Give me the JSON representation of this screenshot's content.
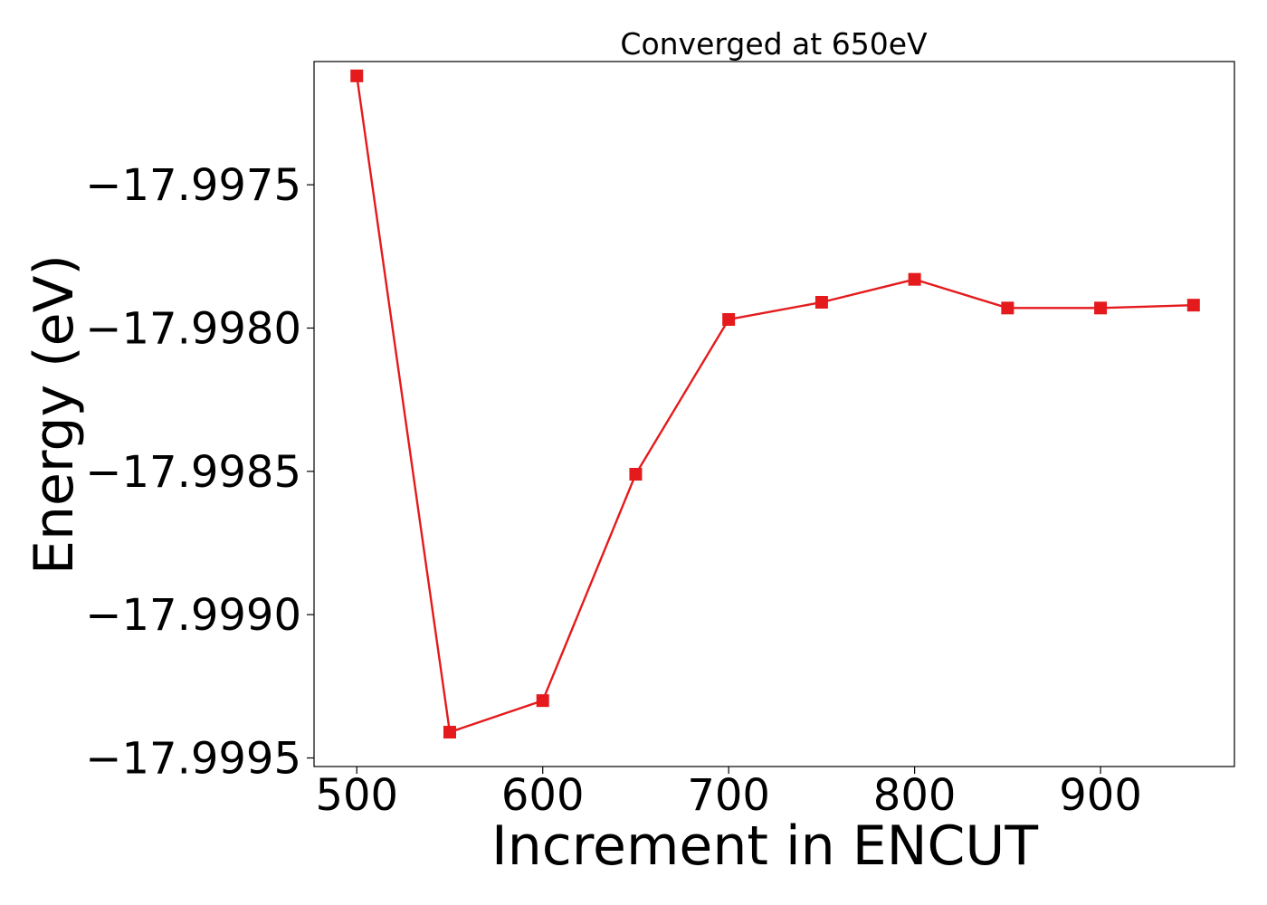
{
  "chart_data": {
    "type": "line",
    "title": "Converged at 650eV",
    "xlabel": "Increment in ENCUT",
    "ylabel": "Energy (eV)",
    "x": [
      500,
      550,
      600,
      650,
      700,
      750,
      800,
      850,
      900,
      950
    ],
    "series": [
      {
        "values": [
          -17.99712,
          -17.99941,
          -17.9993,
          -17.99851,
          -17.99797,
          -17.99791,
          -17.99783,
          -17.99793,
          -17.99793,
          -17.99792
        ],
        "color": "#e41a1c",
        "marker": "square"
      }
    ],
    "xlim": [
      477,
      972
    ],
    "ylim": [
      -17.99953,
      -17.99707
    ],
    "xticks": [
      500,
      600,
      700,
      800,
      900
    ],
    "xtick_labels": [
      "500",
      "600",
      "700",
      "800",
      "900"
    ],
    "yticks": [
      -17.9975,
      -17.998,
      -17.9985,
      -17.999,
      -17.9995
    ],
    "ytick_labels": [
      "−17.9975",
      "−17.9980",
      "−17.9985",
      "−17.9990",
      "−17.9995"
    ],
    "grid": false,
    "legend": "none"
  }
}
